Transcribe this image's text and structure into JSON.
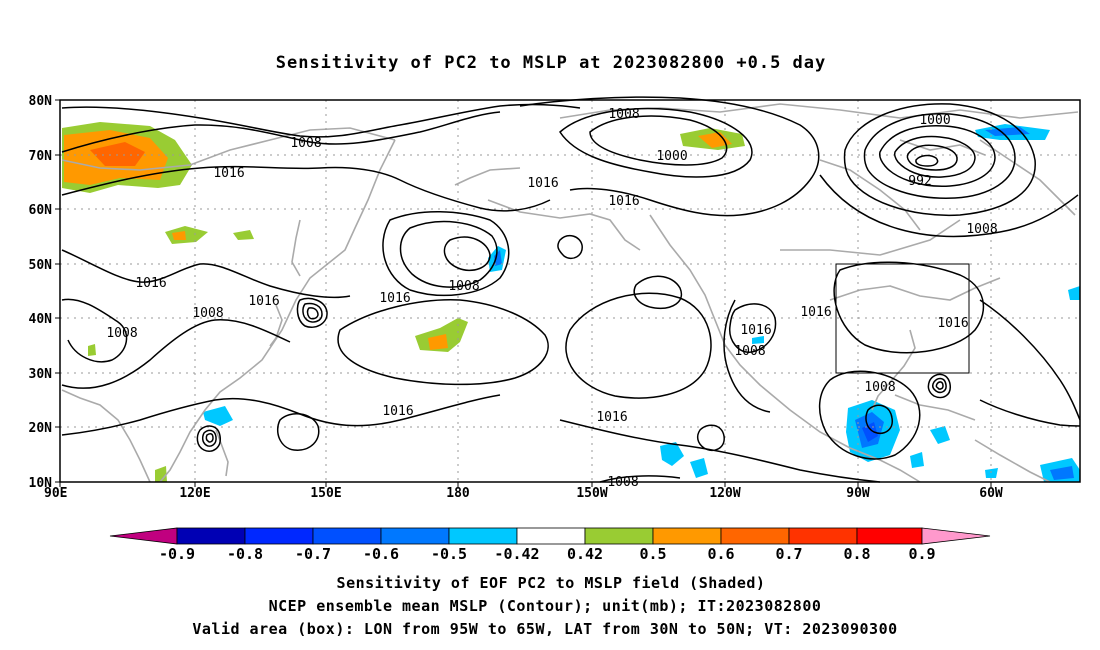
{
  "title": "Sensitivity of PC2 to MSLP at 2023082800 +0.5 day",
  "map": {
    "lat_ticks": [
      "80N",
      "70N",
      "60N",
      "50N",
      "40N",
      "30N",
      "20N",
      "10N"
    ],
    "lon_ticks": [
      "90E",
      "120E",
      "150E",
      "180",
      "150W",
      "120W",
      "90W",
      "60W"
    ],
    "contour_labels": [
      "1008",
      "1016",
      "1000",
      "992",
      "1008",
      "1016",
      "1008",
      "1016",
      "1016",
      "1008",
      "1016",
      "1016",
      "1008",
      "1016",
      "1016",
      "1008",
      "1008",
      "1016",
      "1016",
      "1008",
      "1000",
      "1008"
    ],
    "box": {
      "lon": [
        -95,
        -65
      ],
      "lat": [
        30,
        50
      ]
    },
    "colors": {
      "contour": "#000000",
      "coast": "#aaaaaa",
      "grid": "#9a9a9a"
    }
  },
  "colorbar": {
    "labels": [
      "-0.9",
      "-0.8",
      "-0.7",
      "-0.6",
      "-0.5",
      "-0.42",
      "0.42",
      "0.5",
      "0.6",
      "0.7",
      "0.8",
      "0.9"
    ],
    "colors": [
      "#c0007f",
      "#0000b4",
      "#0028ff",
      "#0050ff",
      "#0078ff",
      "#00c8ff",
      "#ffffff",
      "#99cc33",
      "#ff9900",
      "#ff6600",
      "#ff3300",
      "#ff0000",
      "#ff99cc"
    ]
  },
  "captions": [
    "Sensitivity of EOF PC2 to MSLP field (Shaded)",
    "NCEP ensemble mean MSLP (Contour); unit(mb); IT:2023082800",
    "Valid area (box): LON from 95W to 65W, LAT from 30N to 50N; VT: 2023090300"
  ]
}
